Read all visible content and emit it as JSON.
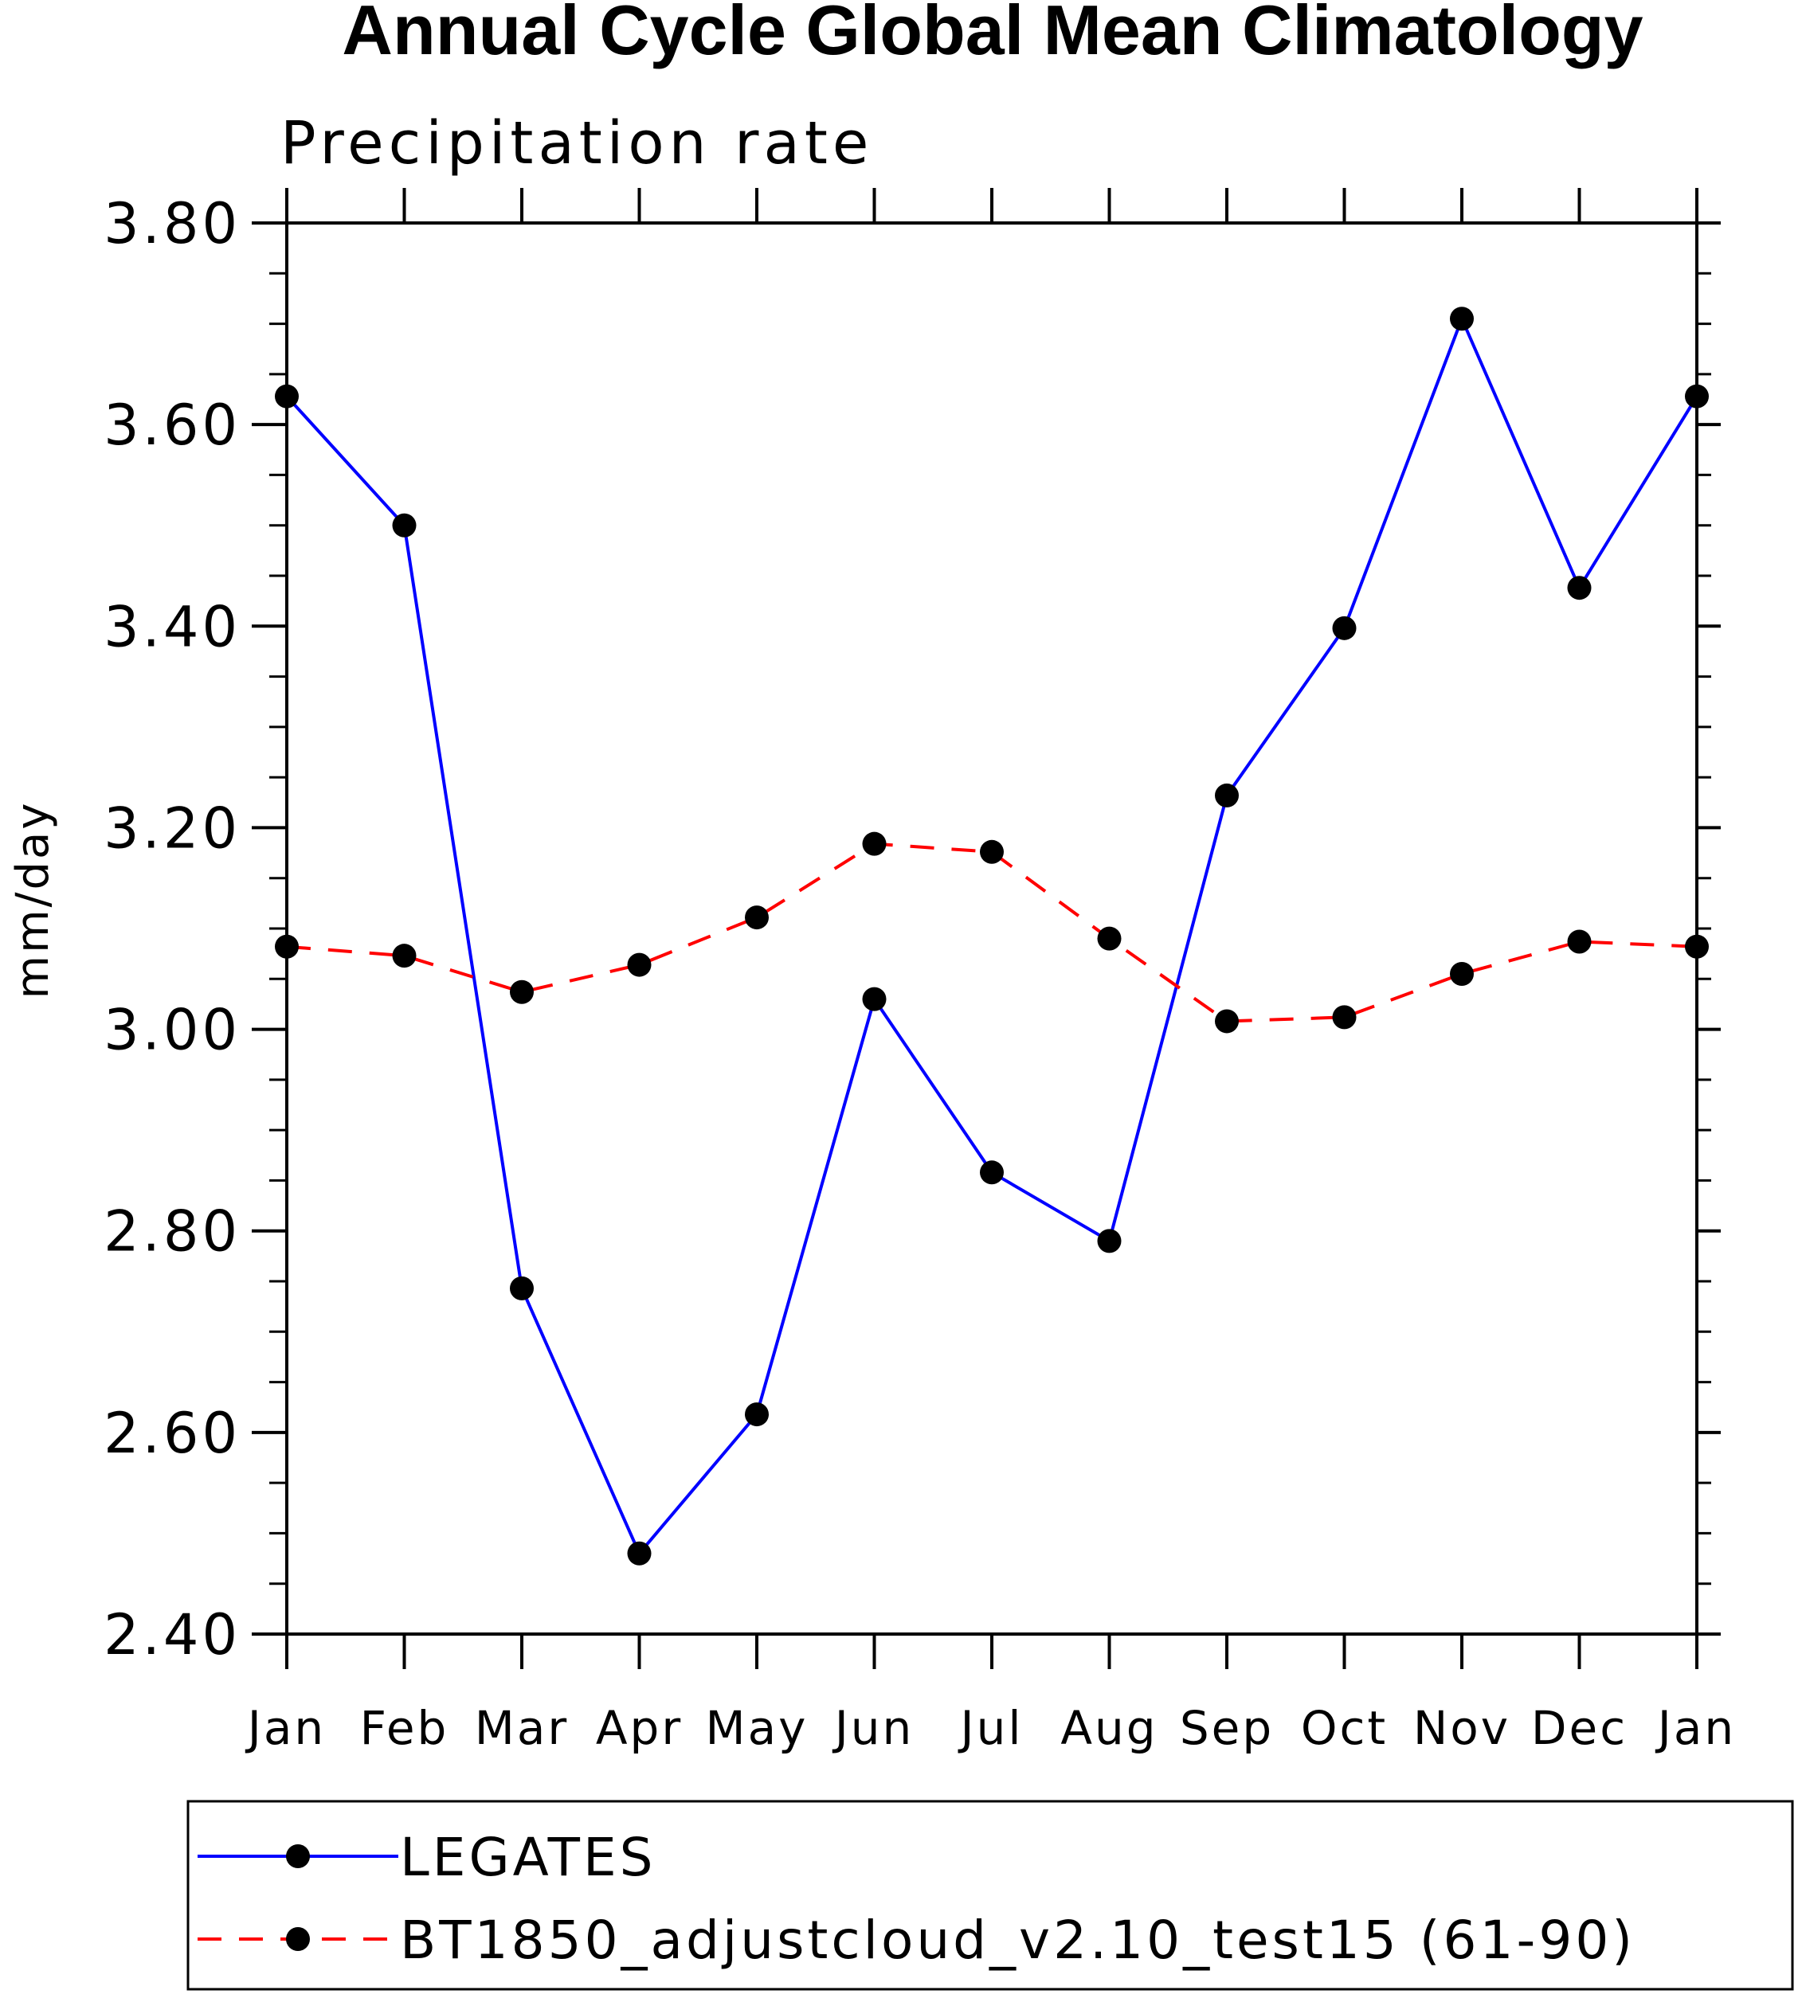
{
  "chart_data": {
    "type": "line",
    "title": "Annual Cycle Global Mean Climatology",
    "subtitle": "Precipitation rate",
    "xlabel": "",
    "ylabel": "mm/day",
    "categories": [
      "Jan",
      "Feb",
      "Mar",
      "Apr",
      "May",
      "Jun",
      "Jul",
      "Aug",
      "Sep",
      "Oct",
      "Nov",
      "Dec",
      "Jan"
    ],
    "ylim": [
      2.4,
      3.8
    ],
    "yticks": [
      "2.40",
      "2.60",
      "2.80",
      "3.00",
      "3.20",
      "3.40",
      "3.60",
      "3.80"
    ],
    "grid": false,
    "legend_position": "bottom",
    "series": [
      {
        "name": "LEGATES",
        "color": "#0000ff",
        "dash": "solid",
        "marker": "filled-circle",
        "values": [
          3.628,
          3.5,
          2.743,
          2.48,
          2.618,
          3.03,
          2.858,
          2.79,
          3.232,
          3.398,
          3.705,
          3.438,
          3.628
        ]
      },
      {
        "name": "BT1850_adjustcloud_v2.10_test15 (61-90)",
        "color": "#ff0000",
        "dash": "dashed",
        "marker": "filled-circle",
        "values": [
          3.082,
          3.073,
          3.037,
          3.064,
          3.111,
          3.184,
          3.176,
          3.09,
          3.008,
          3.012,
          3.055,
          3.087,
          3.082
        ]
      }
    ]
  }
}
